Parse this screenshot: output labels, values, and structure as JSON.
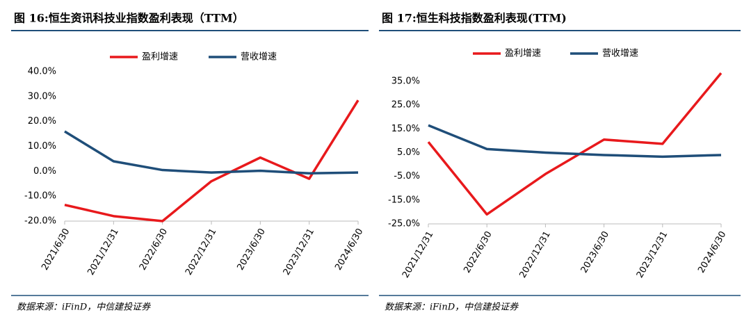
{
  "chart_data": [
    {
      "type": "line",
      "title": "图 16:恒生资讯科技业指数盈利表现（TTM）",
      "categories": [
        "2021/6/30",
        "2021/12/31",
        "2022/6/30",
        "2022/12/31",
        "2023/6/30",
        "2023/12/31",
        "2024/6/30"
      ],
      "series": [
        {
          "name": "盈利增速",
          "color": "#e8191c",
          "values": [
            -13.5,
            -18,
            -20,
            -4,
            5.5,
            -3,
            28.5
          ]
        },
        {
          "name": "营收增速",
          "color": "#1f4e79",
          "values": [
            16,
            4,
            0.5,
            -0.5,
            0.2,
            -0.8,
            -0.5
          ]
        }
      ],
      "ylim": [
        -20,
        40
      ],
      "yticks": [
        {
          "value": -20,
          "label": "-20.0%"
        },
        {
          "value": -10,
          "label": "-10.0%"
        },
        {
          "value": 0,
          "label": "0.0%"
        },
        {
          "value": 10,
          "label": "10.0%"
        },
        {
          "value": 20,
          "label": "20.0%"
        },
        {
          "value": 30,
          "label": "30.0%"
        },
        {
          "value": 40,
          "label": "40.0%"
        }
      ],
      "source": "数据来源：iFinD，中信建投证券"
    },
    {
      "type": "line",
      "title": "图 17:恒生科技指数盈利表现(TTM)",
      "categories": [
        "2021/12/31",
        "2022/6/30",
        "2022/12/31",
        "2023/6/30",
        "2023/12/31",
        "2024/6/30"
      ],
      "series": [
        {
          "name": "盈利增速",
          "color": "#e8191c",
          "values": [
            9.5,
            -21,
            -4,
            10.5,
            8.7,
            38.5
          ]
        },
        {
          "name": "营收增速",
          "color": "#1f4e79",
          "values": [
            16.5,
            6.5,
            5,
            4,
            3.3,
            4
          ]
        }
      ],
      "ylim": [
        -25,
        40
      ],
      "yticks": [
        {
          "value": -25,
          "label": "-25.0%"
        },
        {
          "value": -15,
          "label": "-15.0%"
        },
        {
          "value": -5,
          "label": "-5.0%"
        },
        {
          "value": 5,
          "label": "5.0%"
        },
        {
          "value": 15,
          "label": "15.0%"
        },
        {
          "value": 25,
          "label": "25.0%"
        },
        {
          "value": 35,
          "label": "35.0%"
        }
      ],
      "source": "数据来源：iFinD，中信建投证券"
    }
  ]
}
